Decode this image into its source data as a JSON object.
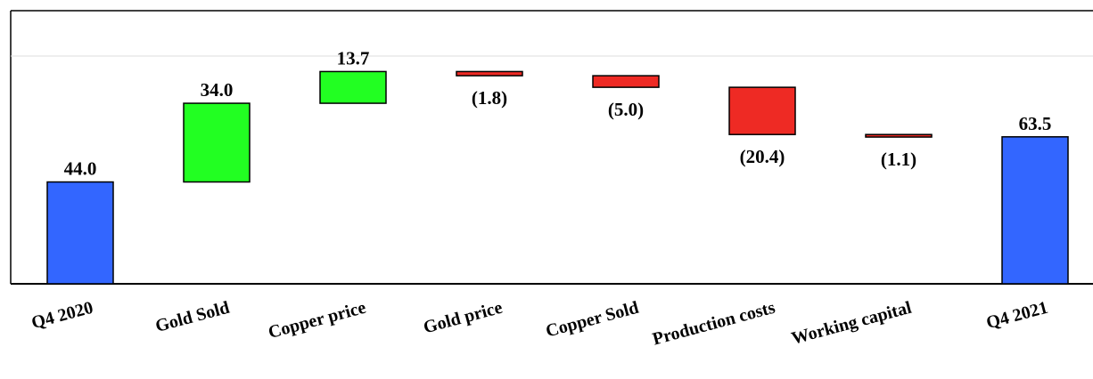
{
  "chart_data": {
    "type": "bar",
    "subtype": "waterfall",
    "title": "",
    "xlabel": "",
    "ylabel": "",
    "ylim": [
      0,
      118
    ],
    "grid": false,
    "categories": [
      "Q4 2020",
      "Gold Sold",
      "Copper price",
      "Gold price",
      "Copper Sold",
      "Production costs",
      "Working capital",
      "Q4 2021"
    ],
    "values": [
      44.0,
      34.0,
      13.7,
      -1.8,
      -5.0,
      -20.4,
      -1.1,
      63.5
    ],
    "kinds": [
      "total",
      "delta",
      "delta",
      "delta",
      "delta",
      "delta",
      "delta",
      "total"
    ],
    "value_labels": [
      "44.0",
      "34.0",
      "13.7",
      "(1.8)",
      "(5.0)",
      "(20.4)",
      "(1.1)",
      "63.5"
    ],
    "colors": {
      "total": "#3366ff",
      "increase": "#22ff22",
      "decrease": "#ee2a24",
      "outline": "#000000"
    }
  }
}
